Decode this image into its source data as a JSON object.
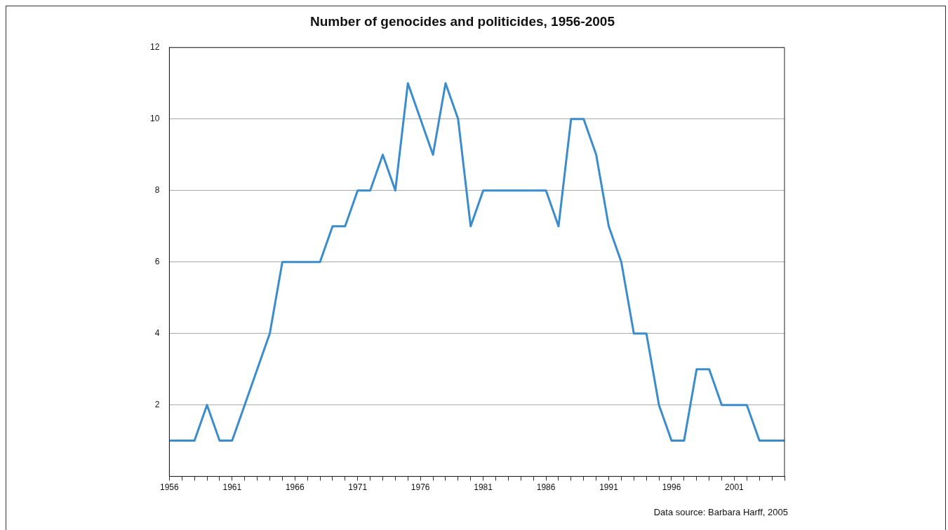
{
  "chart_data": {
    "type": "line",
    "title": "Number of genocides and politicides, 1956-2005",
    "x": [
      1956,
      1957,
      1958,
      1959,
      1960,
      1961,
      1962,
      1963,
      1964,
      1965,
      1966,
      1967,
      1968,
      1969,
      1970,
      1971,
      1972,
      1973,
      1974,
      1975,
      1976,
      1977,
      1978,
      1979,
      1980,
      1981,
      1982,
      1983,
      1984,
      1985,
      1986,
      1987,
      1988,
      1989,
      1990,
      1991,
      1992,
      1993,
      1994,
      1995,
      1996,
      1997,
      1998,
      1999,
      2000,
      2001,
      2002,
      2003,
      2004,
      2005
    ],
    "series": [
      {
        "color": "#3a8ccc",
        "values": [
          1,
          1,
          1,
          2,
          1,
          1,
          2,
          3,
          4,
          6,
          6,
          6,
          6,
          7,
          7,
          8,
          8,
          9,
          8,
          11,
          10,
          9,
          11,
          10,
          7,
          8,
          8,
          8,
          8,
          8,
          8,
          7,
          10,
          10,
          9,
          7,
          6,
          4,
          4,
          2,
          1,
          1,
          3,
          3,
          2,
          2,
          2,
          1,
          1,
          1
        ]
      }
    ],
    "xlim": [
      1956,
      2005
    ],
    "xticks": [
      1956,
      {
        "value": 1957,
        "label": null
      },
      {
        "value": 1958,
        "label": null
      },
      {
        "value": 1959,
        "label": null
      },
      {
        "value": 1960,
        "label": null
      },
      1961,
      {
        "value": 1962,
        "label": null
      },
      {
        "value": 1963,
        "label": null
      },
      {
        "value": 1964,
        "label": null
      },
      {
        "value": 1965,
        "label": null
      },
      1966,
      {
        "value": 1967,
        "label": null
      },
      {
        "value": 1968,
        "label": null
      },
      {
        "value": 1969,
        "label": null
      },
      {
        "value": 1970,
        "label": null
      },
      1971,
      {
        "value": 1972,
        "label": null
      },
      {
        "value": 1973,
        "label": null
      },
      {
        "value": 1974,
        "label": null
      },
      {
        "value": 1975,
        "label": null
      },
      1976,
      {
        "value": 1977,
        "label": null
      },
      {
        "value": 1978,
        "label": null
      },
      {
        "value": 1979,
        "label": null
      },
      {
        "value": 1980,
        "label": null
      },
      1981,
      {
        "value": 1982,
        "label": null
      },
      {
        "value": 1983,
        "label": null
      },
      {
        "value": 1984,
        "label": null
      },
      {
        "value": 1985,
        "label": null
      },
      1986,
      {
        "value": 1987,
        "label": null
      },
      {
        "value": 1988,
        "label": null
      },
      {
        "value": 1989,
        "label": null
      },
      {
        "value": 1990,
        "label": null
      },
      1991,
      {
        "value": 1992,
        "label": null
      },
      {
        "value": 1993,
        "label": null
      },
      {
        "value": 1994,
        "label": null
      },
      {
        "value": 1995,
        "label": null
      },
      1996,
      {
        "value": 1997,
        "label": null
      },
      {
        "value": 1998,
        "label": null
      },
      {
        "value": 1999,
        "label": null
      },
      {
        "value": 2000,
        "label": null
      },
      2001,
      {
        "value": 2002,
        "label": null
      },
      {
        "value": 2003,
        "label": null
      },
      {
        "value": 2004,
        "label": null
      },
      {
        "value": 2005,
        "label": null
      }
    ],
    "ylim": [
      0,
      12
    ],
    "yticks": [
      2,
      4,
      6,
      8,
      10,
      12
    ],
    "grid": "y",
    "marker": "none",
    "line_style": "solid",
    "annotations": [
      "Data source: Barbara Harff, 2005"
    ]
  }
}
